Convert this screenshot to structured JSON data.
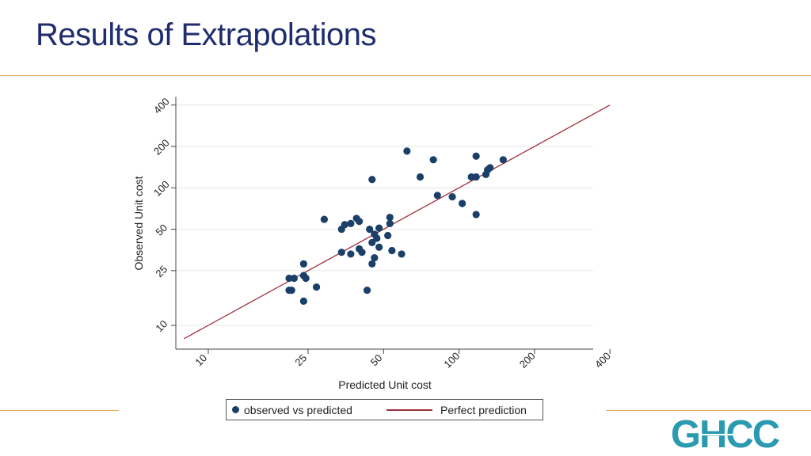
{
  "slide": {
    "title": "Results of Extrapolations"
  },
  "logo": {
    "text": "GHCC",
    "color": "#2a9ab0"
  },
  "colors": {
    "accent_line": "#e7a95e",
    "title": "#1f2d6e",
    "points": "#1a3f68",
    "fit_line": "#a1303c"
  },
  "legend": {
    "items": [
      {
        "label": "observed vs predicted",
        "marker": "dot"
      },
      {
        "label": "Perfect prediction",
        "marker": "line"
      }
    ]
  },
  "chart_data": {
    "type": "scatter",
    "xlabel": "Predicted Unit cost",
    "ylabel": "Observed Unit cost",
    "x_scale": "log",
    "y_scale": "log",
    "xlim": [
      8,
      420
    ],
    "ylim": [
      8,
      420
    ],
    "x_ticks": [
      10,
      25,
      50,
      100,
      200,
      400
    ],
    "y_ticks": [
      10,
      25,
      50,
      100,
      200,
      400
    ],
    "grid": "horizontal",
    "legend_position": "bottom",
    "series": [
      {
        "name": "observed vs predicted",
        "kind": "points",
        "points": [
          [
            21,
            22
          ],
          [
            21,
            18
          ],
          [
            21.5,
            18
          ],
          [
            22,
            22
          ],
          [
            24,
            23
          ],
          [
            24,
            28
          ],
          [
            24,
            15
          ],
          [
            24.5,
            22
          ],
          [
            27,
            19
          ],
          [
            29,
            59
          ],
          [
            34,
            50
          ],
          [
            35,
            54
          ],
          [
            34,
            34
          ],
          [
            37,
            55
          ],
          [
            37,
            33
          ],
          [
            39,
            60
          ],
          [
            40,
            57
          ],
          [
            40,
            36
          ],
          [
            41,
            34
          ],
          [
            43,
            18
          ],
          [
            44,
            50
          ],
          [
            45,
            28
          ],
          [
            45,
            40
          ],
          [
            46,
            31
          ],
          [
            46,
            46
          ],
          [
            47,
            43
          ],
          [
            48,
            51
          ],
          [
            48,
            37
          ],
          [
            52,
            45
          ],
          [
            53,
            55
          ],
          [
            53,
            61
          ],
          [
            54,
            35
          ],
          [
            59,
            33
          ],
          [
            45,
            115
          ],
          [
            62,
            185
          ],
          [
            70,
            120
          ],
          [
            79,
            160
          ],
          [
            82,
            88
          ],
          [
            94,
            86
          ],
          [
            103,
            77
          ],
          [
            112,
            120
          ],
          [
            117,
            120
          ],
          [
            117,
            64
          ],
          [
            117,
            170
          ],
          [
            128,
            125
          ],
          [
            130,
            135
          ],
          [
            133,
            140
          ],
          [
            150,
            160
          ]
        ]
      },
      {
        "name": "Perfect prediction",
        "kind": "line",
        "points": [
          [
            8,
            8
          ],
          [
            400,
            400
          ]
        ]
      }
    ]
  }
}
